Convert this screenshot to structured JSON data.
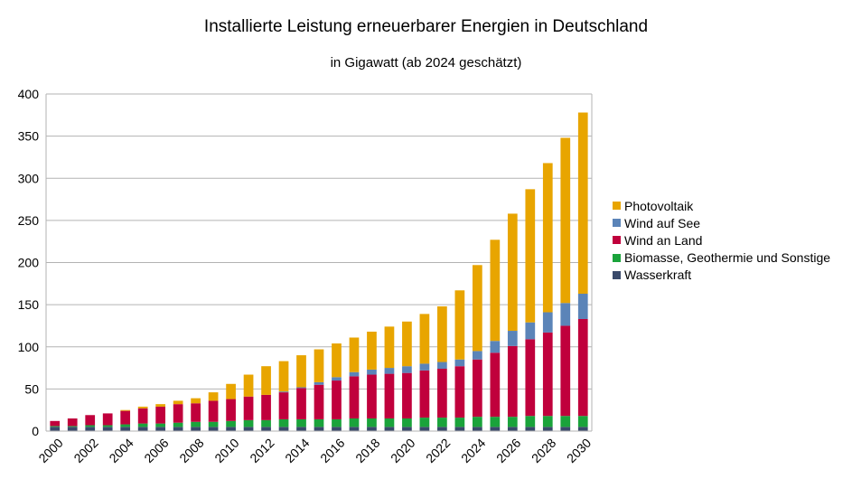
{
  "chart_data": {
    "type": "bar",
    "stacked": true,
    "title": "Installierte Leistung erneuerbarer Energien in Deutschland",
    "subtitle": "in Gigawatt (ab 2024 geschätzt)",
    "xlabel": "",
    "ylabel": "",
    "ylim": [
      0,
      400
    ],
    "yticks": [
      0,
      50,
      100,
      150,
      200,
      250,
      300,
      350,
      400
    ],
    "grid": true,
    "legend_position": "right",
    "categories": [
      "2000",
      "2001",
      "2002",
      "2003",
      "2004",
      "2005",
      "2006",
      "2007",
      "2008",
      "2009",
      "2010",
      "2011",
      "2012",
      "2013",
      "2014",
      "2015",
      "2016",
      "2017",
      "2018",
      "2019",
      "2020",
      "2021",
      "2022",
      "2023",
      "2024",
      "2025",
      "2026",
      "2027",
      "2028",
      "2029",
      "2030"
    ],
    "xtick_labels": [
      "2000",
      "2002",
      "2004",
      "2006",
      "2008",
      "2010",
      "2012",
      "2014",
      "2016",
      "2018",
      "2020",
      "2022",
      "2024",
      "2026",
      "2028",
      "2030"
    ],
    "series": [
      {
        "name": "Wasserkraft",
        "color": "#3a4a6b",
        "values": [
          5,
          5,
          5,
          5,
          5,
          5,
          5,
          5,
          5,
          5,
          5,
          5,
          5,
          5,
          5,
          5,
          5,
          5,
          5,
          5,
          5,
          5,
          5,
          5,
          5,
          5,
          5,
          5,
          5,
          5,
          5
        ]
      },
      {
        "name": "Biomasse, Geothermie und Sonstige",
        "color": "#1aa33b",
        "values": [
          1,
          1,
          2,
          2,
          3,
          4,
          4,
          5,
          6,
          6,
          7,
          8,
          8,
          9,
          9,
          9,
          9,
          10,
          10,
          10,
          10,
          11,
          11,
          11,
          12,
          12,
          12,
          13,
          13,
          13,
          13
        ]
      },
      {
        "name": "Wind an Land",
        "color": "#c0003c",
        "values": [
          6,
          9,
          12,
          14,
          16,
          18,
          20,
          22,
          22,
          25,
          26,
          28,
          30,
          32,
          37,
          41,
          46,
          50,
          52,
          53,
          54,
          56,
          58,
          61,
          68,
          76,
          84,
          91,
          99,
          107,
          115
        ]
      },
      {
        "name": "Wind auf See",
        "color": "#5b84b8",
        "values": [
          0,
          0,
          0,
          0,
          0,
          0,
          0,
          0,
          0,
          0,
          0,
          0,
          0,
          1,
          1,
          3,
          4,
          5,
          6,
          7,
          8,
          8,
          8,
          8,
          10,
          14,
          18,
          20,
          24,
          27,
          30
        ]
      },
      {
        "name": "Photovoltaik",
        "color": "#e8a500",
        "values": [
          0,
          0,
          0,
          0,
          1,
          2,
          3,
          4,
          6,
          10,
          18,
          26,
          34,
          36,
          38,
          39,
          40,
          41,
          45,
          49,
          53,
          59,
          66,
          82,
          102,
          120,
          139,
          158,
          177,
          196,
          215
        ]
      }
    ]
  }
}
